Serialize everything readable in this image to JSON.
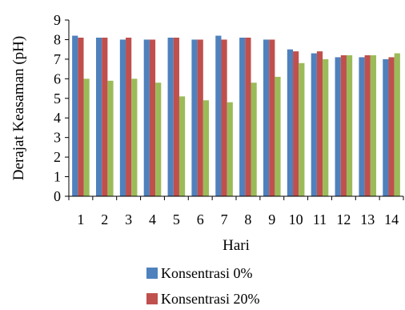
{
  "chart_data": {
    "type": "bar",
    "title": "",
    "xlabel": "Hari",
    "ylabel": "Derajat Keasaman (pH)",
    "ylim": [
      0,
      9
    ],
    "yticks": [
      0,
      1,
      2,
      3,
      4,
      5,
      6,
      7,
      8,
      9
    ],
    "grid": false,
    "legend_position": "bottom",
    "categories": [
      "1",
      "2",
      "3",
      "4",
      "5",
      "6",
      "7",
      "8",
      "9",
      "10",
      "11",
      "12",
      "13",
      "14"
    ],
    "series": [
      {
        "name": "Konsentrasi 0%",
        "color": "#4F81BD",
        "values": [
          8.2,
          8.1,
          8.0,
          8.0,
          8.1,
          8.0,
          8.2,
          8.1,
          8.0,
          7.5,
          7.3,
          7.1,
          7.1,
          7.0
        ]
      },
      {
        "name": "Konsentrasi 20%",
        "color": "#C0504D",
        "values": [
          8.1,
          8.1,
          8.1,
          8.0,
          8.1,
          8.0,
          8.0,
          8.1,
          8.0,
          7.4,
          7.4,
          7.2,
          7.2,
          7.1
        ]
      },
      {
        "name": "",
        "color": "#9BBB59",
        "values": [
          6.0,
          5.9,
          6.0,
          5.8,
          5.1,
          4.9,
          4.8,
          5.8,
          6.1,
          6.8,
          7.0,
          7.2,
          7.2,
          7.3
        ]
      }
    ]
  }
}
